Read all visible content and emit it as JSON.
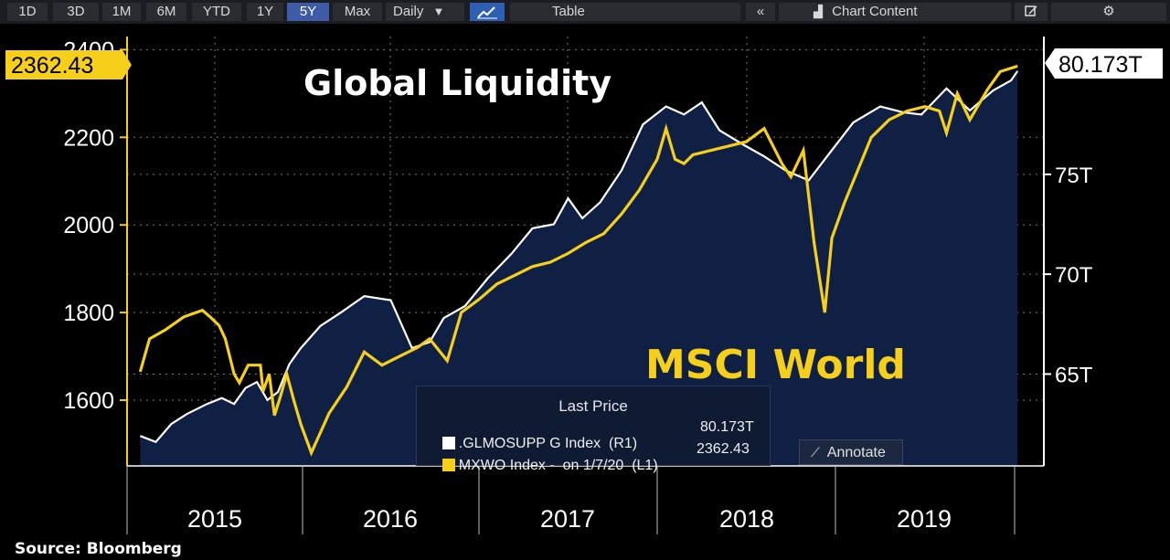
{
  "toolbar": {
    "ranges": [
      "1D",
      "3D",
      "1M",
      "6M",
      "YTD",
      "1Y",
      "5Y",
      "Max"
    ],
    "active_range": "5Y",
    "frequency": "Daily",
    "frequency_arrow": "▼",
    "chart_icon": "line-chart-icon",
    "table_label": "Table",
    "collapse_icon": "«",
    "chart_content_label": "Chart Content",
    "chart_content_icon": "chart-content-icon",
    "edit_icon": "edit-icon",
    "settings_icon": "⚙"
  },
  "colors": {
    "background": "#000000",
    "area_fill": "#0f2044",
    "white_series": "#ffffff",
    "yellow_series": "#f5cf1a",
    "grid": "#7a7a7a"
  },
  "titles": {
    "global_liquidity": "Global Liquidity",
    "msci_world": "MSCI World"
  },
  "last_value_labels": {
    "left": "2362.43",
    "right": "80.173T"
  },
  "legend": {
    "header": "Last Price",
    "rows": [
      {
        "label": ".GLMOSUPP G Index  (R1)",
        "value": "80.173T",
        "color": "#ffffff"
      },
      {
        "label": "MXWO Index -  on 1/7/20  (L1)",
        "value": "2362.43",
        "color": "#f5cf1a"
      }
    ]
  },
  "annotate_label": "Annotate",
  "source": "Source: Bloomberg",
  "chart_data": {
    "type": "line",
    "title": "",
    "x_tick_labels": [
      "2015",
      "2016",
      "2017",
      "2018",
      "2019"
    ],
    "y_left": {
      "ticks": [
        1600,
        1800,
        2000,
        2200,
        2400
      ],
      "range": [
        1450,
        2430
      ]
    },
    "y_right": {
      "ticks": [
        "65T",
        "70T",
        "75T"
      ],
      "tick_values": [
        65,
        70,
        75
      ],
      "range": [
        60.4,
        81.9
      ]
    },
    "grid": true,
    "series": [
      {
        "name": ".GLMOSUPP G Index",
        "axis": "right",
        "style": "area",
        "x": [
          2014.52,
          2014.62,
          2014.72,
          2014.82,
          2014.95,
          2015.08,
          2015.22,
          2015.35,
          2015.48,
          2015.6,
          2015.72,
          2015.85,
          2015.98,
          2016.1,
          2016.22,
          2016.35,
          2016.5,
          2016.62,
          2016.72,
          2016.8,
          2016.92,
          2017.05,
          2017.18,
          2017.3,
          2017.42,
          2017.5,
          2017.58,
          2017.68,
          2017.8,
          2017.92,
          2018.05,
          2018.15,
          2018.25,
          2018.35,
          2018.48,
          2018.6,
          2018.72,
          2018.85,
          2018.97,
          2019.1,
          2019.25,
          2019.38,
          2019.48,
          2019.62,
          2019.75,
          2019.88,
          2019.98,
          2020.02
        ],
        "values": [
          61.9,
          61.6,
          62.5,
          63.0,
          63.5,
          63.8,
          63.5,
          64.3,
          64.6,
          63.7,
          64.1,
          65.5,
          66.3,
          67.4,
          68.1,
          68.9,
          68.7,
          66.3,
          66.6,
          67.8,
          68.4,
          69.8,
          71.0,
          72.3,
          72.5,
          73.8,
          72.8,
          73.6,
          75.2,
          77.5,
          78.4,
          78.0,
          78.6,
          77.2,
          76.5,
          75.9,
          75.2,
          74.7,
          76.1,
          77.6,
          78.4,
          78.1,
          78.0,
          79.3,
          78.2,
          79.2,
          79.7,
          80.17
        ]
      },
      {
        "name": "MXWO Index",
        "axis": "left",
        "style": "line",
        "x": [
          2014.52,
          2014.58,
          2014.68,
          2014.8,
          2014.92,
          2014.97,
          2015.05,
          2015.12,
          2015.22,
          2015.28,
          2015.38,
          2015.45,
          2015.52,
          2015.55,
          2015.62,
          2015.68,
          2015.75,
          2015.82,
          2015.9,
          2015.98,
          2016.05,
          2016.15,
          2016.25,
          2016.35,
          2016.45,
          2016.55,
          2016.65,
          2016.72,
          2016.82,
          2016.9,
          2017.0,
          2017.1,
          2017.2,
          2017.3,
          2017.4,
          2017.5,
          2017.6,
          2017.7,
          2017.8,
          2017.9,
          2018.0,
          2018.05,
          2018.1,
          2018.15,
          2018.2,
          2018.3,
          2018.4,
          2018.5,
          2018.6,
          2018.7,
          2018.75,
          2018.82,
          2018.88,
          2018.94,
          2018.98,
          2019.05,
          2019.12,
          2019.2,
          2019.3,
          2019.4,
          2019.5,
          2019.58,
          2019.62,
          2019.68,
          2019.75,
          2019.85,
          2019.92,
          2020.02
        ],
        "values": [
          1665,
          1740,
          1760,
          1790,
          1805,
          1790,
          1770,
          1740,
          1660,
          1640,
          1680,
          1680,
          1680,
          1620,
          1660,
          1565,
          1610,
          1660,
          1600,
          1545,
          1480,
          1570,
          1630,
          1710,
          1680,
          1700,
          1720,
          1740,
          1690,
          1800,
          1830,
          1865,
          1885,
          1905,
          1915,
          1935,
          1960,
          1980,
          2025,
          2080,
          2150,
          2220,
          2150,
          2140,
          2160,
          2170,
          2180,
          2190,
          2220,
          2140,
          2110,
          2170,
          1960,
          1800,
          1970,
          2050,
          2120,
          2200,
          2240,
          2260,
          2270,
          2260,
          2210,
          2300,
          2240,
          2310,
          2350,
          2362.43
        ]
      }
    ]
  }
}
